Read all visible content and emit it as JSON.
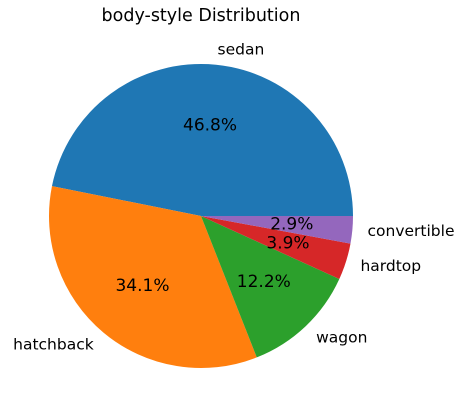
{
  "chart_data": {
    "type": "pie",
    "title": "body-style Distribution",
    "categories": [
      "sedan",
      "hatchback",
      "wagon",
      "hardtop",
      "convertible"
    ],
    "values": [
      46.8,
      34.1,
      12.2,
      3.9,
      2.9
    ],
    "value_labels": [
      "46.8%",
      "34.1%",
      "12.2%",
      "3.9%",
      "2.9%"
    ],
    "colors": [
      "#1f77b4",
      "#ff7f0e",
      "#2ca02c",
      "#d62728",
      "#9467bd"
    ],
    "start_angle_deg": 0,
    "direction": "counterclockwise",
    "legend": "none"
  }
}
